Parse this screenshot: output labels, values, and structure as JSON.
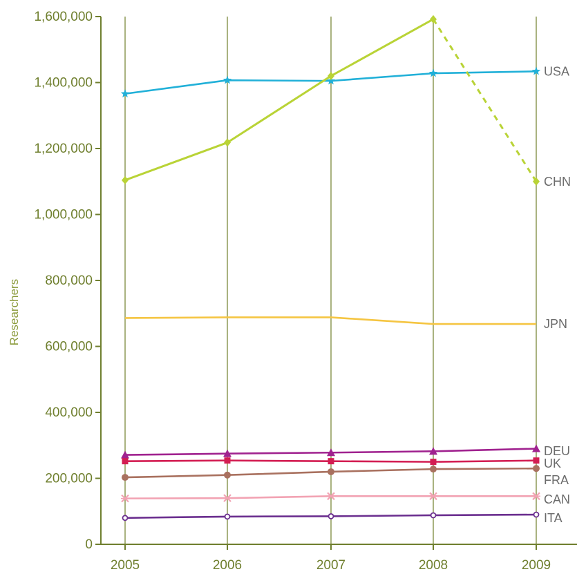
{
  "chart_data": {
    "type": "line",
    "title": "",
    "xlabel": "",
    "ylabel": "Researchers",
    "ylim": [
      0,
      1600000
    ],
    "x": [
      "2005",
      "2006",
      "2007",
      "2008",
      "2009"
    ],
    "y_ticks": [
      "0",
      "200,000",
      "400,000",
      "600,000",
      "800,000",
      "1,000,000",
      "1,200,000",
      "1,400,000",
      "1,600,000"
    ],
    "y_tick_values": [
      0,
      200000,
      400000,
      600000,
      800000,
      1000000,
      1200000,
      1400000,
      1600000
    ],
    "grid": "vertical lines at each year",
    "legend": "series labels at right end of lines",
    "colors": {
      "axis": "#6f7f2e",
      "gridline": "#a9b27f",
      "labels": "#6b6b6b"
    },
    "series": [
      {
        "name": "USA",
        "color": "#21b0d8",
        "marker": "star",
        "values": [
          1366000,
          1407000,
          1405000,
          1428000,
          1434000
        ]
      },
      {
        "name": "CHN",
        "color": "#b9d336",
        "marker": "diamond",
        "values": [
          1104000,
          1218000,
          1420000,
          1592000,
          1100000
        ],
        "dashed_last_segment": true
      },
      {
        "name": "JPN",
        "color": "#f5c542",
        "marker": "none",
        "values": [
          686000,
          688000,
          688000,
          668000,
          668000
        ]
      },
      {
        "name": "DEU",
        "color": "#a0228f",
        "marker": "triangle",
        "values": [
          271000,
          275000,
          278000,
          282000,
          290000
        ]
      },
      {
        "name": "UK",
        "color": "#d31d52",
        "marker": "square",
        "values": [
          252000,
          254000,
          252000,
          250000,
          254000
        ]
      },
      {
        "name": "FRA",
        "color": "#a9715f",
        "marker": "circle",
        "values": [
          203000,
          210000,
          220000,
          228000,
          230000
        ]
      },
      {
        "name": "CAN",
        "color": "#f2a3b3",
        "marker": "x",
        "values": [
          139000,
          140000,
          146000,
          146000,
          146000
        ]
      },
      {
        "name": "ITA",
        "color": "#6b2f8f",
        "marker": "open-circle",
        "values": [
          80000,
          84000,
          85000,
          88000,
          90000
        ]
      }
    ]
  }
}
